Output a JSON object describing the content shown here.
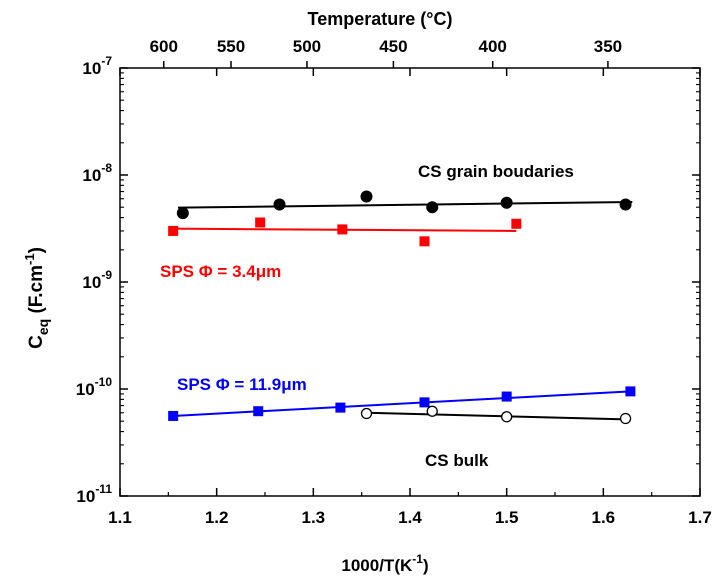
{
  "chart_data": {
    "type": "scatter",
    "xlabel": "1000/T(K",
    "xlabel_sup": "-1",
    "xlabel_close": ")",
    "ylabel_main": "C",
    "ylabel_sub": "eq",
    "ylabel_rest": " (F.cm",
    "ylabel_sup": "-1",
    "ylabel_close": ")",
    "top_axis_title": "Temperature (°C)",
    "xlim": [
      1.1,
      1.7
    ],
    "ylim_exp": [
      -11,
      -7
    ],
    "log_y": true,
    "grid": false,
    "x_ticks": [
      "1.1",
      "1.2",
      "1.3",
      "1.4",
      "1.5",
      "1.6",
      "1.7"
    ],
    "y_ticks": [
      {
        "exp": -11,
        "base": "10",
        "sup": "-11"
      },
      {
        "exp": -10,
        "base": "10",
        "sup": "-10"
      },
      {
        "exp": -9,
        "base": "10",
        "sup": "-9"
      },
      {
        "exp": -8,
        "base": "10",
        "sup": "-8"
      },
      {
        "exp": -7,
        "base": "10",
        "sup": "-7"
      }
    ],
    "top_ticks": [
      {
        "celsius": 600,
        "label": "600"
      },
      {
        "celsius": 550,
        "label": "550"
      },
      {
        "celsius": 500,
        "label": "500"
      },
      {
        "celsius": 450,
        "label": "450"
      },
      {
        "celsius": 400,
        "label": "400"
      },
      {
        "celsius": 350,
        "label": "350"
      }
    ],
    "series": [
      {
        "key": "cs_gb",
        "color": "#000000",
        "marker": "circle-filled",
        "x": [
          1.165,
          1.265,
          1.355,
          1.423,
          1.5,
          1.623
        ],
        "y": [
          4.4e-09,
          5.3e-09,
          6.3e-09,
          5e-09,
          5.5e-09,
          5.3e-09
        ],
        "fit": {
          "x": [
            1.16,
            1.63
          ],
          "y": [
            4.95e-09,
            5.6e-09
          ]
        }
      },
      {
        "key": "sps_34",
        "color": "#ff0000",
        "marker": "square-filled",
        "x": [
          1.155,
          1.245,
          1.33,
          1.415,
          1.51
        ],
        "y": [
          3e-09,
          3.6e-09,
          3.1e-09,
          2.4e-09,
          3.5e-09
        ],
        "fit": {
          "x": [
            1.155,
            1.51
          ],
          "y": [
            3.15e-09,
            3e-09
          ]
        }
      },
      {
        "key": "sps_119",
        "color": "#0000ff",
        "marker": "square-filled",
        "x": [
          1.155,
          1.243,
          1.328,
          1.415,
          1.5,
          1.628
        ],
        "y": [
          5.6e-11,
          6.2e-11,
          6.7e-11,
          7.5e-11,
          8.5e-11,
          9.5e-11
        ],
        "fit": {
          "x": [
            1.155,
            1.628
          ],
          "y": [
            5.6e-11,
            9.5e-11
          ]
        }
      },
      {
        "key": "cs_bulk",
        "color": "#000000",
        "marker": "circle-open",
        "x": [
          1.355,
          1.423,
          1.5,
          1.623
        ],
        "y": [
          5.9e-11,
          6.2e-11,
          5.5e-11,
          5.3e-11
        ],
        "fit": {
          "x": [
            1.355,
            1.623
          ],
          "y": [
            6e-11,
            5.2e-11
          ]
        }
      }
    ],
    "annotations": {
      "cs_gb": {
        "text": "CS  grain boudaries",
        "color": "#000000"
      },
      "sps_34": {
        "text": "SPS Φ = 3.4μm",
        "color": "#ff0000"
      },
      "sps_119": {
        "text": "SPS Φ = 11.9μm",
        "color": "#0000ff"
      },
      "cs_bulk": {
        "text": "CS bulk",
        "color": "#000000"
      }
    }
  }
}
